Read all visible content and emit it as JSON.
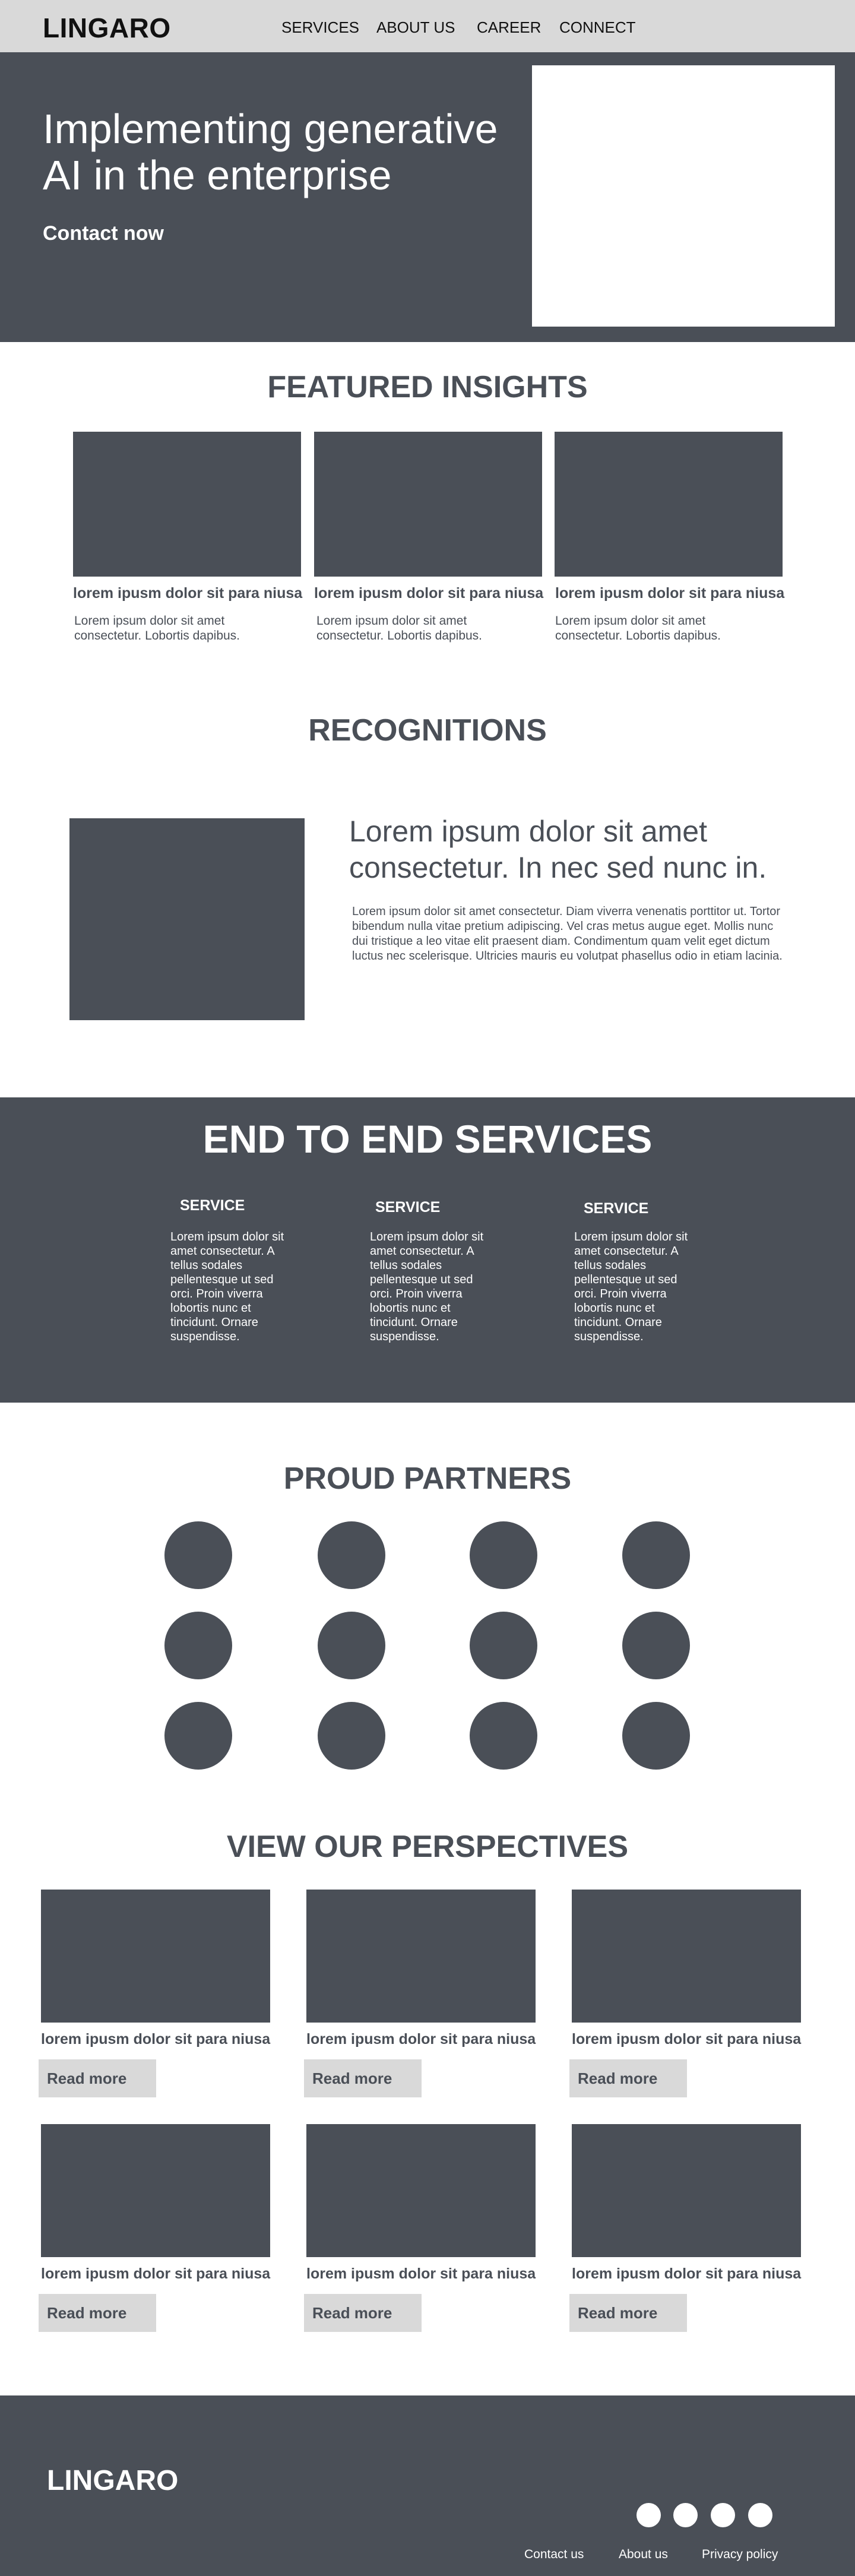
{
  "nav": {
    "logo": "LINGARO",
    "links": [
      "SERVICES",
      "ABOUT US",
      "CAREER",
      "CONNECT"
    ]
  },
  "hero": {
    "title": "Implementing generative AI in the enterprise",
    "cta": "Contact now"
  },
  "featured_insights": {
    "title": "FEATURED INSIGHTS",
    "cards": [
      {
        "title": "lorem ipusm dolor sit para niusa",
        "desc": "Lorem ipsum dolor sit amet consectetur. Lobortis dapibus."
      },
      {
        "title": "lorem ipusm dolor sit para niusa",
        "desc": "Lorem ipsum dolor sit amet consectetur. Lobortis dapibus."
      },
      {
        "title": "lorem ipusm dolor sit para niusa",
        "desc": "Lorem ipsum dolor sit amet consectetur. Lobortis dapibus."
      }
    ]
  },
  "recognitions": {
    "title": "RECOGNITIONS",
    "headline": "Lorem ipsum dolor sit amet consectetur. In nec sed nunc in.",
    "body": "Lorem ipsum dolor sit amet consectetur. Diam viverra venenatis porttitor ut. Tortor bibendum nulla vitae pretium adipiscing. Vel cras metus augue eget. Mollis nunc dui tristique a leo vitae elit praesent diam. Condimentum quam velit eget dictum luctus nec scelerisque. Ultricies mauris eu volutpat phasellus odio in etiam lacinia."
  },
  "services": {
    "title": "END TO END SERVICES",
    "items": [
      {
        "name": "SERVICE",
        "desc": "Lorem ipsum dolor sit amet consectetur. A tellus sodales pellentesque ut sed orci. Proin viverra lobortis nunc et tincidunt. Ornare suspendisse."
      },
      {
        "name": "SERVICE",
        "desc": "Lorem ipsum dolor sit amet consectetur. A tellus sodales pellentesque ut sed orci. Proin viverra lobortis nunc et tincidunt. Ornare suspendisse."
      },
      {
        "name": "SERVICE",
        "desc": "Lorem ipsum dolor sit amet consectetur. A tellus sodales pellentesque ut sed orci. Proin viverra lobortis nunc et tincidunt. Ornare suspendisse."
      }
    ]
  },
  "partners": {
    "title": "PROUD PARTNERS"
  },
  "perspectives": {
    "title": "VIEW OUR PERSPECTIVES",
    "cards": [
      {
        "title": "lorem ipusm dolor sit para niusa",
        "button": "Read more"
      },
      {
        "title": "lorem ipusm dolor sit para niusa",
        "button": "Read more"
      },
      {
        "title": "lorem ipusm dolor sit para niusa",
        "button": "Read more"
      },
      {
        "title": "lorem ipusm dolor sit para niusa",
        "button": "Read more"
      },
      {
        "title": "lorem ipusm dolor sit para niusa",
        "button": "Read more"
      },
      {
        "title": "lorem ipusm dolor sit para niusa",
        "button": "Read more"
      }
    ]
  },
  "footer": {
    "logo": "LINGARO",
    "links": [
      "Contact us",
      "About us",
      "Privacy policy"
    ]
  },
  "colors": {
    "nav_bg": "#d9d9d9",
    "dark_slate": "#4a4f57",
    "white": "#ffffff"
  }
}
